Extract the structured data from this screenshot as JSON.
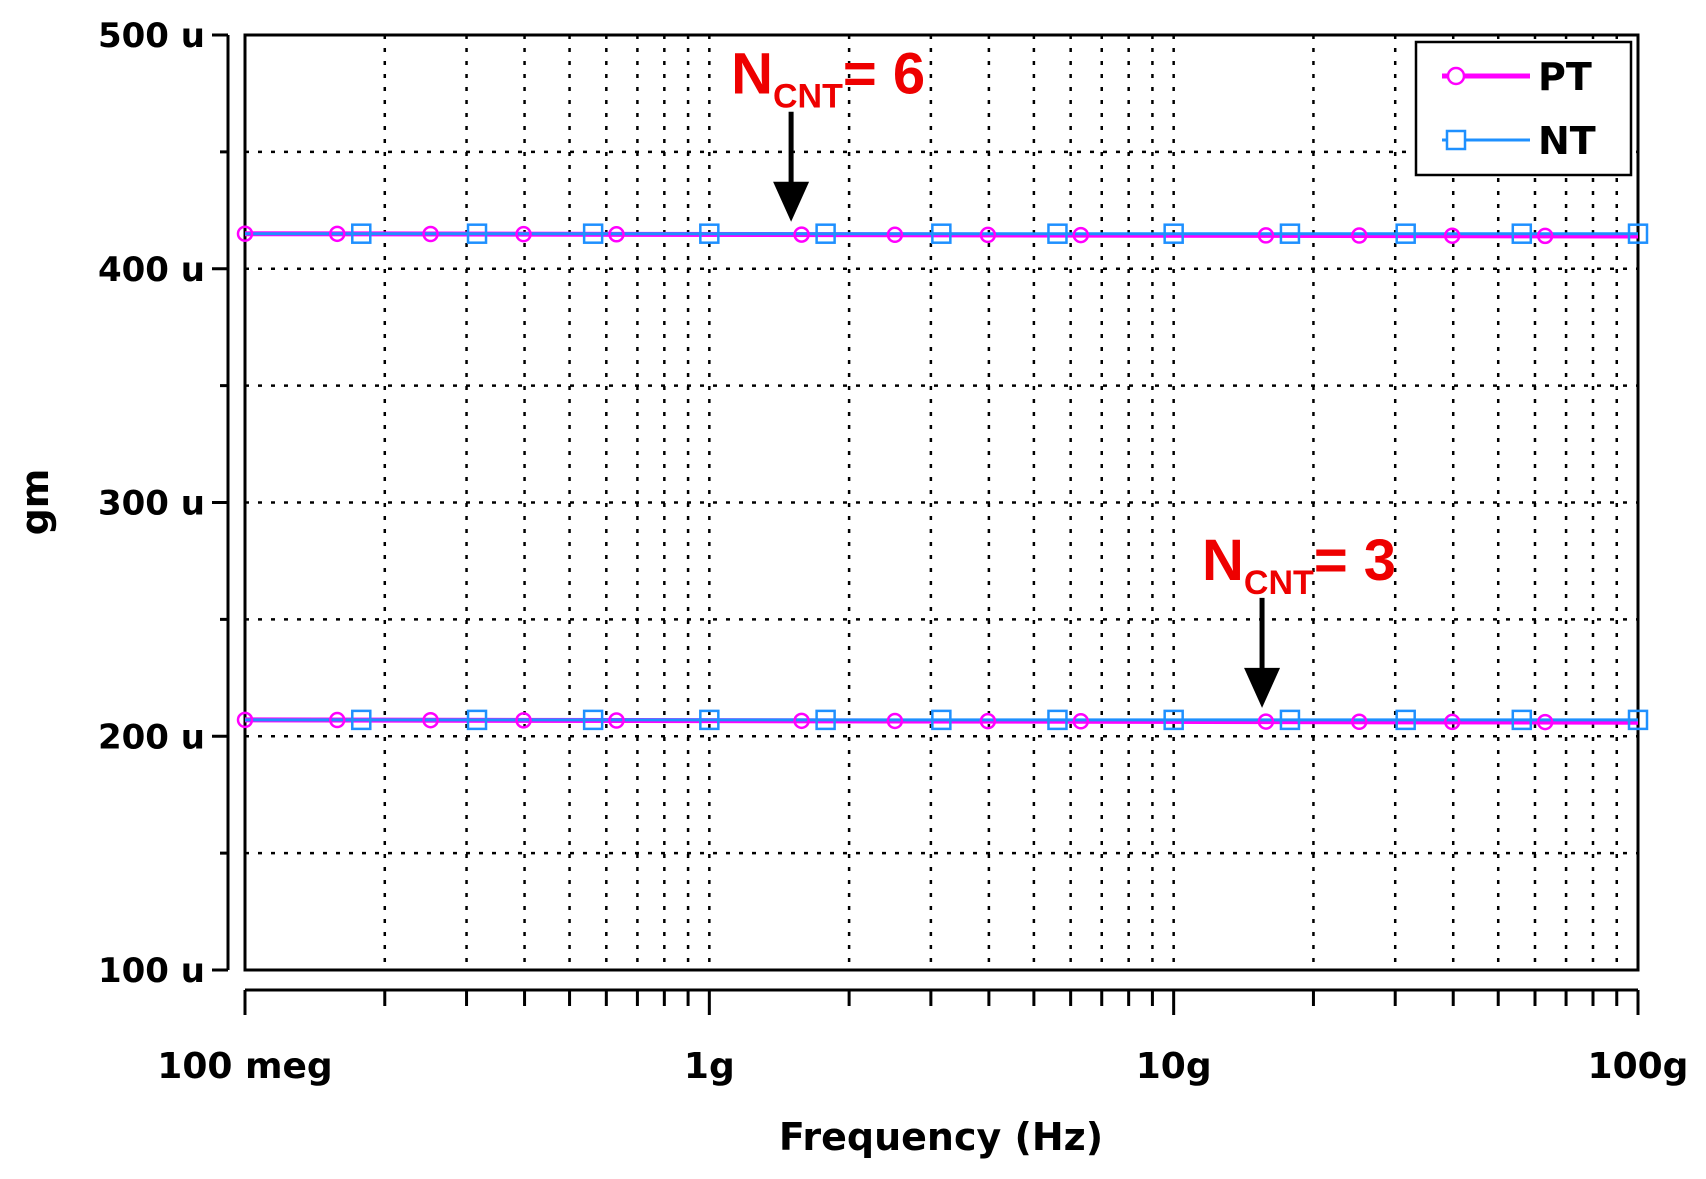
{
  "chart_data": {
    "type": "line",
    "xlabel": "Frequency (Hz)",
    "ylabel": "gm",
    "x_scale": "log",
    "xlim": [
      100000000,
      100000000000
    ],
    "ylim": [
      0.0001,
      0.0005
    ],
    "grid": true,
    "legend_position": "top-right",
    "x_ticks": [
      {
        "value": 100000000,
        "label": "100 meg"
      },
      {
        "value": 1000000000,
        "label": "1g"
      },
      {
        "value": 10000000000,
        "label": "10g"
      },
      {
        "value": 100000000000,
        "label": "100g"
      }
    ],
    "y_ticks": [
      {
        "value": 0.0001,
        "label": "100 u"
      },
      {
        "value": 0.0002,
        "label": "200 u"
      },
      {
        "value": 0.0003,
        "label": "300 u"
      },
      {
        "value": 0.0004,
        "label": "400 u"
      },
      {
        "value": 0.0005,
        "label": "500 u"
      }
    ],
    "x": [
      100000000,
      100000000000
    ],
    "series": [
      {
        "name": "PT",
        "group": "NCNT=6",
        "color": "#ff00ff",
        "marker": "circle",
        "values": [
          0.000415,
          0.000414
        ]
      },
      {
        "name": "NT",
        "group": "NCNT=6",
        "color": "#1e90ff",
        "marker": "square",
        "values": [
          0.000415,
          0.000415
        ]
      },
      {
        "name": "PT",
        "group": "NCNT=3",
        "color": "#ff00ff",
        "marker": "circle",
        "values": [
          0.000207,
          0.000206
        ]
      },
      {
        "name": "NT",
        "group": "NCNT=3",
        "color": "#1e90ff",
        "marker": "square",
        "values": [
          0.000207,
          0.000207
        ]
      }
    ],
    "markers": {
      "PT": [
        100000000,
        158000000,
        251000000,
        398000000,
        631000000,
        1580000000,
        2510000000,
        3980000000,
        6310000000,
        15800000000,
        25100000000,
        39800000000,
        63100000000
      ],
      "NT": [
        178000000,
        316000000,
        562000000,
        1000000000,
        1780000000,
        3160000000,
        5620000000,
        10000000000,
        17800000000,
        31600000000,
        56200000000,
        100000000000
      ]
    },
    "annotations": [
      {
        "main": "N",
        "sub": "CNT",
        "rest": "= 6",
        "x": 1500000000,
        "y": 0.000415
      },
      {
        "main": "N",
        "sub": "CNT",
        "rest": "= 3",
        "x": 15500000000,
        "y": 0.000207
      }
    ]
  },
  "legend": [
    {
      "label": "PT",
      "color": "#ff00ff",
      "marker": "circle"
    },
    {
      "label": "NT",
      "color": "#1e90ff",
      "marker": "square"
    }
  ],
  "colors": {
    "annotation": "#ee0000",
    "arrow": "#000000",
    "grid": "#000000"
  }
}
